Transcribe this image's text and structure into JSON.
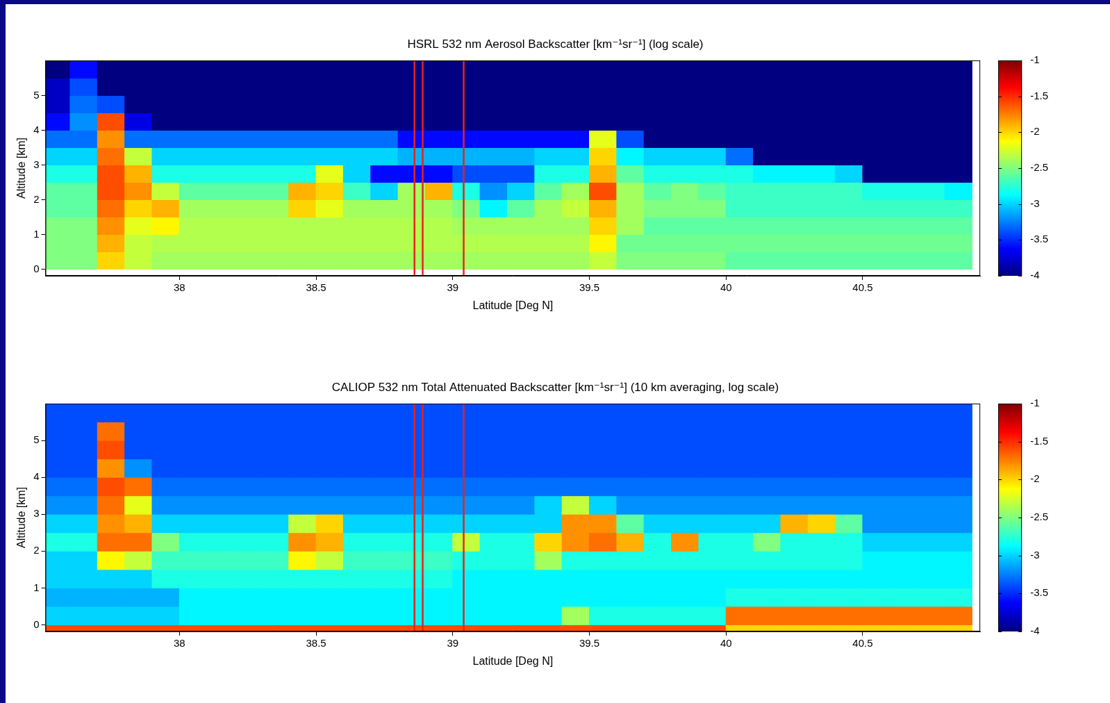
{
  "chart_data": [
    {
      "type": "heatmap",
      "title": "HSRL 532 nm Aerosol Backscatter [km⁻¹sr⁻¹] (log scale)",
      "x_label": "Latitude [Deg N]",
      "y_label": "Altitude [km]",
      "xlim": [
        37.51,
        40.93
      ],
      "xticks": [
        38,
        38.5,
        39,
        39.5,
        40,
        40.5
      ],
      "ylim": [
        -0.19,
        6.01
      ],
      "yticks": [
        0,
        1,
        2,
        3,
        4,
        5
      ],
      "grid": false,
      "colorbar": {
        "range": [
          -4,
          -1
        ],
        "ticks": [
          -1,
          -1.5,
          -2,
          -2.5,
          -3,
          -3.5,
          -4
        ]
      },
      "vlines": {
        "x": [
          38.86,
          38.89,
          39.04
        ],
        "color": "#e8231a"
      },
      "x_edges": [
        37.5,
        37.6,
        37.7,
        37.8,
        37.9,
        38.0,
        38.1,
        38.2,
        38.3,
        38.4,
        38.5,
        38.6,
        38.7,
        38.8,
        38.9,
        39.0,
        39.1,
        39.2,
        39.3,
        39.4,
        39.5,
        39.6,
        39.7,
        39.8,
        39.9,
        40.0,
        40.1,
        40.2,
        40.3,
        40.4,
        40.5,
        40.6,
        40.7,
        40.8,
        40.9
      ],
      "y_edges": [
        -0.2,
        0,
        0.5,
        1,
        1.5,
        2,
        2.5,
        3,
        3.5,
        4,
        4.5,
        5,
        5.5,
        6
      ],
      "cells": [
        [
          null,
          null,
          null,
          null,
          null,
          null,
          null,
          null,
          null,
          null,
          null,
          null,
          null,
          null,
          null,
          null,
          null,
          null,
          null,
          null,
          null,
          null,
          null,
          null,
          null,
          null,
          null,
          null,
          null,
          null,
          null,
          null,
          null,
          null
        ],
        [
          -2.5,
          -2.5,
          -2.0,
          -2.3,
          -2.4,
          -2.4,
          -2.4,
          -2.4,
          -2.4,
          -2.4,
          -2.4,
          -2.4,
          -2.4,
          -2.4,
          -2.4,
          -2.4,
          -2.4,
          -2.4,
          -2.4,
          -2.4,
          -2.3,
          -2.5,
          -2.5,
          -2.5,
          -2.5,
          -2.6,
          -2.6,
          -2.6,
          -2.6,
          -2.6,
          -2.6,
          -2.6,
          -2.6,
          -2.6
        ],
        [
          -2.5,
          -2.5,
          -1.9,
          -2.3,
          -2.35,
          -2.35,
          -2.35,
          -2.35,
          -2.35,
          -2.35,
          -2.35,
          -2.35,
          -2.35,
          -2.35,
          -2.35,
          -2.35,
          -2.35,
          -2.35,
          -2.35,
          -2.35,
          -2.1,
          -2.55,
          -2.55,
          -2.55,
          -2.55,
          -2.55,
          -2.55,
          -2.55,
          -2.55,
          -2.55,
          -2.55,
          -2.55,
          -2.55,
          -2.55
        ],
        [
          -2.5,
          -2.5,
          -1.8,
          -2.2,
          -2.1,
          -2.35,
          -2.35,
          -2.35,
          -2.35,
          -2.35,
          -2.35,
          -2.35,
          -2.35,
          -2.35,
          -2.35,
          -2.4,
          -2.4,
          -2.4,
          -2.4,
          -2.4,
          -2.0,
          -2.4,
          -2.6,
          -2.6,
          -2.6,
          -2.6,
          -2.6,
          -2.6,
          -2.6,
          -2.6,
          -2.6,
          -2.6,
          -2.6,
          -2.6
        ],
        [
          -2.6,
          -2.6,
          -1.7,
          -2.0,
          -1.9,
          -2.4,
          -2.4,
          -2.4,
          -2.4,
          -2.0,
          -2.2,
          -2.4,
          -2.4,
          -2.4,
          -2.4,
          -2.5,
          -2.9,
          -2.6,
          -2.4,
          -2.3,
          -1.9,
          -2.4,
          -2.5,
          -2.5,
          -2.5,
          -2.7,
          -2.7,
          -2.7,
          -2.7,
          -2.7,
          -2.7,
          -2.7,
          -2.7,
          -2.7
        ],
        [
          -2.6,
          -2.6,
          -1.6,
          -1.8,
          -2.3,
          -2.6,
          -2.6,
          -2.6,
          -2.6,
          -1.9,
          -2.0,
          -2.7,
          -3.0,
          -2.4,
          -1.9,
          -2.8,
          -3.2,
          -3.0,
          -2.6,
          -2.4,
          -1.6,
          -2.4,
          -2.6,
          -2.5,
          -2.6,
          -2.7,
          -2.7,
          -2.7,
          -2.7,
          -2.7,
          -2.8,
          -2.8,
          -2.8,
          -2.9
        ],
        [
          -2.8,
          -2.8,
          -1.6,
          -1.9,
          -2.8,
          -2.8,
          -2.8,
          -2.8,
          -2.8,
          -2.8,
          -2.2,
          -3.0,
          -3.6,
          -3.6,
          -3.6,
          -3.4,
          -3.4,
          -3.4,
          -2.8,
          -2.8,
          -1.9,
          -2.6,
          -2.8,
          -2.8,
          -2.8,
          -2.8,
          -2.9,
          -2.9,
          -2.9,
          -3.0,
          -4.0,
          -4.0,
          -4.0,
          -4.0
        ],
        [
          -3.0,
          -3.0,
          -1.7,
          -2.3,
          -3.0,
          -3.0,
          -3.0,
          -3.0,
          -3.0,
          -3.0,
          -3.0,
          -3.0,
          -3.0,
          -3.1,
          -3.1,
          -3.1,
          -3.1,
          -3.1,
          -3.0,
          -3.0,
          -2.0,
          -2.9,
          -3.0,
          -3.0,
          -3.0,
          -3.3,
          -4.0,
          -4.0,
          -4.0,
          -4.0,
          -4.0,
          -4.0,
          -4.0,
          -4.0
        ],
        [
          -3.3,
          -3.3,
          -1.8,
          -3.3,
          -3.3,
          -3.3,
          -3.3,
          -3.3,
          -3.3,
          -3.3,
          -3.3,
          -3.3,
          -3.3,
          -3.6,
          -3.6,
          -3.6,
          -3.6,
          -3.6,
          -3.6,
          -3.6,
          -2.2,
          -3.4,
          -4.0,
          -4.0,
          -4.0,
          -4.0,
          -4.0,
          -4.0,
          -4.0,
          -4.0,
          -4.0,
          -4.0,
          -4.0,
          -4.0
        ],
        [
          -3.6,
          -3.2,
          -1.6,
          -3.7,
          -4.0,
          -4.0,
          -4.0,
          -4.0,
          -4.0,
          -4.0,
          -4.0,
          -4.0,
          -4.0,
          -4.0,
          -4.0,
          -4.0,
          -4.0,
          -4.0,
          -4.0,
          -4.0,
          -4.0,
          -4.0,
          -4.0,
          -4.0,
          -4.0,
          -4.0,
          -4.0,
          -4.0,
          -4.0,
          -4.0,
          -4.0,
          -4.0,
          -4.0,
          -4.0
        ],
        [
          -3.8,
          -3.3,
          -3.4,
          -4.0,
          -4.0,
          -4.0,
          -4.0,
          -4.0,
          -4.0,
          -4.0,
          -4.0,
          -4.0,
          -4.0,
          -4.0,
          -4.0,
          -4.0,
          -4.0,
          -4.0,
          -4.0,
          -4.0,
          -4.0,
          -4.0,
          -4.0,
          -4.0,
          -4.0,
          -4.0,
          -4.0,
          -4.0,
          -4.0,
          -4.0,
          -4.0,
          -4.0,
          -4.0,
          -4.0
        ],
        [
          -3.8,
          -3.4,
          -4.0,
          -4.0,
          -4.0,
          -4.0,
          -4.0,
          -4.0,
          -4.0,
          -4.0,
          -4.0,
          -4.0,
          -4.0,
          -4.0,
          -4.0,
          -4.0,
          -4.0,
          -4.0,
          -4.0,
          -4.0,
          -4.0,
          -4.0,
          -4.0,
          -4.0,
          -4.0,
          -4.0,
          -4.0,
          -4.0,
          -4.0,
          -4.0,
          -4.0,
          -4.0,
          -4.0,
          -4.0
        ],
        [
          -4.0,
          -3.6,
          -4.0,
          -4.0,
          -4.0,
          -4.0,
          -4.0,
          -4.0,
          -4.0,
          -4.0,
          -4.0,
          -4.0,
          -4.0,
          -4.0,
          -4.0,
          -4.0,
          -4.0,
          -4.0,
          -4.0,
          -4.0,
          -4.0,
          -4.0,
          -4.0,
          -4.0,
          -4.0,
          -4.0,
          -4.0,
          -4.0,
          -4.0,
          -4.0,
          -4.0,
          -4.0,
          -4.0,
          -4.0
        ]
      ]
    },
    {
      "type": "heatmap",
      "title": "CALIOP 532 nm Total Attenuated Backscatter [km⁻¹sr⁻¹] (10 km averaging, log scale)",
      "x_label": "Latitude [Deg N]",
      "y_label": "Altitude [km]",
      "xlim": [
        37.51,
        40.93
      ],
      "xticks": [
        38,
        38.5,
        39,
        39.5,
        40,
        40.5
      ],
      "ylim": [
        -0.18,
        6.0
      ],
      "yticks": [
        0,
        1,
        2,
        3,
        4,
        5
      ],
      "grid": false,
      "colorbar": {
        "range": [
          -4,
          -1
        ],
        "ticks": [
          -1,
          -1.5,
          -2,
          -2.5,
          -3,
          -3.5,
          -4
        ]
      },
      "vlines": {
        "x": [
          38.86,
          38.89,
          39.04
        ],
        "color": "#e8231a"
      },
      "x_edges": [
        37.5,
        37.6,
        37.7,
        37.8,
        37.9,
        38.0,
        38.1,
        38.2,
        38.3,
        38.4,
        38.5,
        38.6,
        38.7,
        38.8,
        38.9,
        39.0,
        39.1,
        39.2,
        39.3,
        39.4,
        39.5,
        39.6,
        39.7,
        39.8,
        39.9,
        40.0,
        40.1,
        40.2,
        40.3,
        40.4,
        40.5,
        40.6,
        40.7,
        40.8,
        40.9
      ],
      "y_edges": [
        -0.2,
        0,
        0.5,
        1,
        1.5,
        2,
        2.5,
        3,
        3.5,
        4,
        4.5,
        5,
        5.5,
        6
      ],
      "cells": [
        [
          -1.6,
          -1.6,
          -1.6,
          -1.6,
          -1.6,
          -1.6,
          -1.6,
          -1.6,
          -1.6,
          -1.6,
          -1.6,
          -1.6,
          -1.6,
          -1.6,
          -1.6,
          -1.6,
          -1.6,
          -1.6,
          -1.6,
          -1.6,
          -1.6,
          -1.6,
          -1.6,
          -1.6,
          -1.6,
          -2.0,
          -2.0,
          -2.0,
          -2.0,
          -2.0,
          -2.0,
          -2.0,
          -2.0,
          -2.0
        ],
        [
          -3.0,
          -3.0,
          -3.0,
          -3.0,
          -3.0,
          -2.9,
          -2.9,
          -2.9,
          -2.9,
          -2.9,
          -2.9,
          -2.9,
          -2.9,
          -2.9,
          -2.9,
          -2.9,
          -2.9,
          -2.9,
          -2.9,
          -2.4,
          -2.8,
          -2.8,
          -2.8,
          -2.8,
          -2.8,
          -1.7,
          -1.7,
          -1.7,
          -1.7,
          -1.7,
          -1.7,
          -1.7,
          -1.7,
          -1.7
        ],
        [
          -3.1,
          -3.1,
          -3.1,
          -3.1,
          -3.1,
          -2.9,
          -2.9,
          -2.9,
          -2.9,
          -2.9,
          -2.9,
          -2.9,
          -2.9,
          -2.9,
          -2.9,
          -2.9,
          -2.9,
          -2.9,
          -2.9,
          -2.9,
          -2.9,
          -2.9,
          -2.9,
          -2.9,
          -2.9,
          -2.8,
          -2.8,
          -2.8,
          -2.8,
          -2.8,
          -2.8,
          -2.8,
          -2.8,
          -2.8
        ],
        [
          -3.0,
          -3.0,
          -3.0,
          -3.0,
          -2.8,
          -2.8,
          -2.8,
          -2.8,
          -2.8,
          -2.8,
          -2.8,
          -2.8,
          -2.8,
          -2.8,
          -2.8,
          -2.9,
          -2.9,
          -2.9,
          -2.9,
          -2.9,
          -2.9,
          -2.9,
          -2.9,
          -2.9,
          -2.9,
          -2.9,
          -2.9,
          -2.9,
          -2.9,
          -2.9,
          -2.9,
          -2.9,
          -2.9,
          -2.9
        ],
        [
          -3.0,
          -3.0,
          -2.1,
          -2.3,
          -2.7,
          -2.7,
          -2.7,
          -2.7,
          -2.7,
          -2.1,
          -2.3,
          -2.7,
          -2.7,
          -2.7,
          -2.7,
          -2.8,
          -2.8,
          -2.8,
          -2.4,
          -2.8,
          -2.8,
          -2.8,
          -2.8,
          -2.8,
          -2.8,
          -2.8,
          -2.8,
          -2.8,
          -2.8,
          -2.8,
          -2.9,
          -2.9,
          -2.9,
          -2.9
        ],
        [
          -2.8,
          -2.8,
          -1.7,
          -1.7,
          -2.5,
          -2.8,
          -2.8,
          -2.8,
          -2.8,
          -1.8,
          -1.9,
          -2.8,
          -2.8,
          -2.8,
          -2.8,
          -2.3,
          -2.8,
          -2.8,
          -2.0,
          -1.8,
          -1.7,
          -1.9,
          -2.8,
          -1.8,
          -2.8,
          -2.8,
          -2.5,
          -2.8,
          -2.8,
          -2.8,
          -3.0,
          -3.0,
          -3.0,
          -3.0
        ],
        [
          -3.0,
          -3.0,
          -1.8,
          -1.9,
          -3.0,
          -3.0,
          -3.0,
          -3.0,
          -3.0,
          -2.3,
          -2.0,
          -3.0,
          -3.0,
          -3.0,
          -3.0,
          -3.0,
          -3.0,
          -3.0,
          -3.0,
          -1.8,
          -1.8,
          -2.6,
          -3.0,
          -3.0,
          -3.0,
          -3.0,
          -3.0,
          -1.9,
          -2.0,
          -2.6,
          -3.2,
          -3.2,
          -3.2,
          -3.2
        ],
        [
          -3.2,
          -3.2,
          -1.7,
          -2.2,
          -3.2,
          -3.2,
          -3.2,
          -3.2,
          -3.2,
          -3.2,
          -3.2,
          -3.2,
          -3.2,
          -3.2,
          -3.2,
          -3.2,
          -3.2,
          -3.2,
          -3.0,
          -2.3,
          -3.0,
          -3.2,
          -3.2,
          -3.2,
          -3.2,
          -3.2,
          -3.2,
          -3.2,
          -3.2,
          -3.2,
          -3.2,
          -3.2,
          -3.2,
          -3.2
        ],
        [
          -3.3,
          -3.3,
          -1.6,
          -1.7,
          -3.3,
          -3.3,
          -3.3,
          -3.3,
          -3.3,
          -3.3,
          -3.3,
          -3.3,
          -3.3,
          -3.3,
          -3.3,
          -3.3,
          -3.3,
          -3.3,
          -3.3,
          -3.3,
          -3.3,
          -3.3,
          -3.3,
          -3.3,
          -3.3,
          -3.3,
          -3.3,
          -3.3,
          -3.3,
          -3.3,
          -3.3,
          -3.3,
          -3.3,
          -3.3
        ],
        [
          -3.4,
          -3.4,
          -1.8,
          -3.2,
          -3.4,
          -3.4,
          -3.4,
          -3.4,
          -3.4,
          -3.4,
          -3.4,
          -3.4,
          -3.4,
          -3.4,
          -3.4,
          -3.4,
          -3.4,
          -3.4,
          -3.4,
          -3.4,
          -3.4,
          -3.4,
          -3.4,
          -3.4,
          -3.4,
          -3.4,
          -3.4,
          -3.4,
          -3.4,
          -3.4,
          -3.4,
          -3.4,
          -3.4,
          -3.4
        ],
        [
          -3.4,
          -3.4,
          -1.6,
          -3.4,
          -3.4,
          -3.4,
          -3.4,
          -3.4,
          -3.4,
          -3.4,
          -3.4,
          -3.4,
          -3.4,
          -3.4,
          -3.4,
          -3.4,
          -3.4,
          -3.4,
          -3.4,
          -3.4,
          -3.4,
          -3.4,
          -3.4,
          -3.4,
          -3.4,
          -3.4,
          -3.4,
          -3.4,
          -3.4,
          -3.4,
          -3.4,
          -3.4,
          -3.4,
          -3.4
        ],
        [
          -3.4,
          -3.4,
          -1.7,
          -3.4,
          -3.4,
          -3.4,
          -3.4,
          -3.4,
          -3.4,
          -3.4,
          -3.4,
          -3.4,
          -3.4,
          -3.4,
          -3.4,
          -3.4,
          -3.4,
          -3.4,
          -3.4,
          -3.4,
          -3.4,
          -3.4,
          -3.4,
          -3.4,
          -3.4,
          -3.4,
          -3.4,
          -3.4,
          -3.4,
          -3.4,
          -3.4,
          -3.4,
          -3.4,
          -3.4
        ],
        [
          -3.4,
          -3.4,
          -3.4,
          -3.4,
          -3.4,
          -3.4,
          -3.4,
          -3.4,
          -3.4,
          -3.4,
          -3.4,
          -3.4,
          -3.4,
          -3.4,
          -3.4,
          -3.4,
          -3.4,
          -3.4,
          -3.4,
          -3.4,
          -3.4,
          -3.4,
          -3.4,
          -3.4,
          -3.4,
          -3.4,
          -3.4,
          -3.4,
          -3.4,
          -3.4,
          -3.4,
          -3.4,
          -3.4,
          -3.4
        ]
      ]
    }
  ]
}
